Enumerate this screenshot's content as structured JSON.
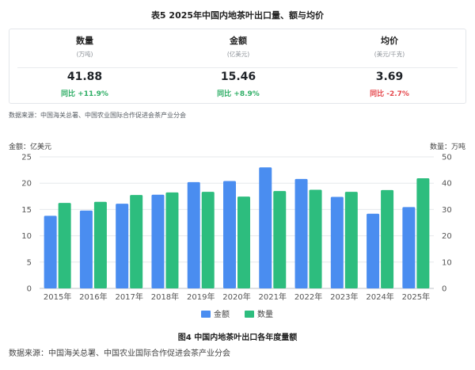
{
  "table": {
    "title": "表5  2025年中国内地茶叶出口量、额与均价",
    "stats": [
      {
        "label": "数量",
        "unit": "(万吨)",
        "value": "41.88",
        "yoy": "同比 +11.9%",
        "trend": "up"
      },
      {
        "label": "金额",
        "unit": "(亿美元)",
        "value": "15.46",
        "yoy": "同比 +8.9%",
        "trend": "up"
      },
      {
        "label": "均价",
        "unit": "(美元/千克)",
        "value": "3.69",
        "yoy": "同比 -2.7%",
        "trend": "down"
      }
    ],
    "source": "数据来源：中国海关总署、中国农业国际合作促进会茶产业分会"
  },
  "figure": {
    "title": "图4  中国内地茶叶出口各年度量额",
    "source": "数据来源：中国海关总署、中国农业国际合作促进会茶产业分会"
  },
  "chart_data": {
    "type": "bar",
    "title": "图4  中国内地茶叶出口各年度量额",
    "categories": [
      "2015年",
      "2016年",
      "2017年",
      "2018年",
      "2019年",
      "2020年",
      "2021年",
      "2022年",
      "2023年",
      "2024年",
      "2025年"
    ],
    "series": [
      {
        "name": "金额",
        "axis": "left",
        "color": "#4a8df0",
        "values": [
          13.8,
          14.8,
          16.1,
          17.8,
          20.2,
          20.4,
          23.0,
          20.8,
          17.4,
          14.2,
          15.46
        ]
      },
      {
        "name": "数量",
        "axis": "right",
        "color": "#2dbd7e",
        "values": [
          32.5,
          32.9,
          35.5,
          36.5,
          36.7,
          34.9,
          37.0,
          37.5,
          36.7,
          37.4,
          41.88
        ]
      }
    ],
    "ylabel_left": "金额：亿美元",
    "ylabel_right": "数量：万吨",
    "ylim_left": [
      0,
      25
    ],
    "ylim_right": [
      0,
      50
    ],
    "yticks_left": [
      "0",
      "5",
      "10",
      "15",
      "20",
      "25"
    ],
    "yticks_right": [
      "0",
      "10",
      "20",
      "30",
      "40",
      "50"
    ],
    "grid": true,
    "legend_position": "bottom-center"
  }
}
